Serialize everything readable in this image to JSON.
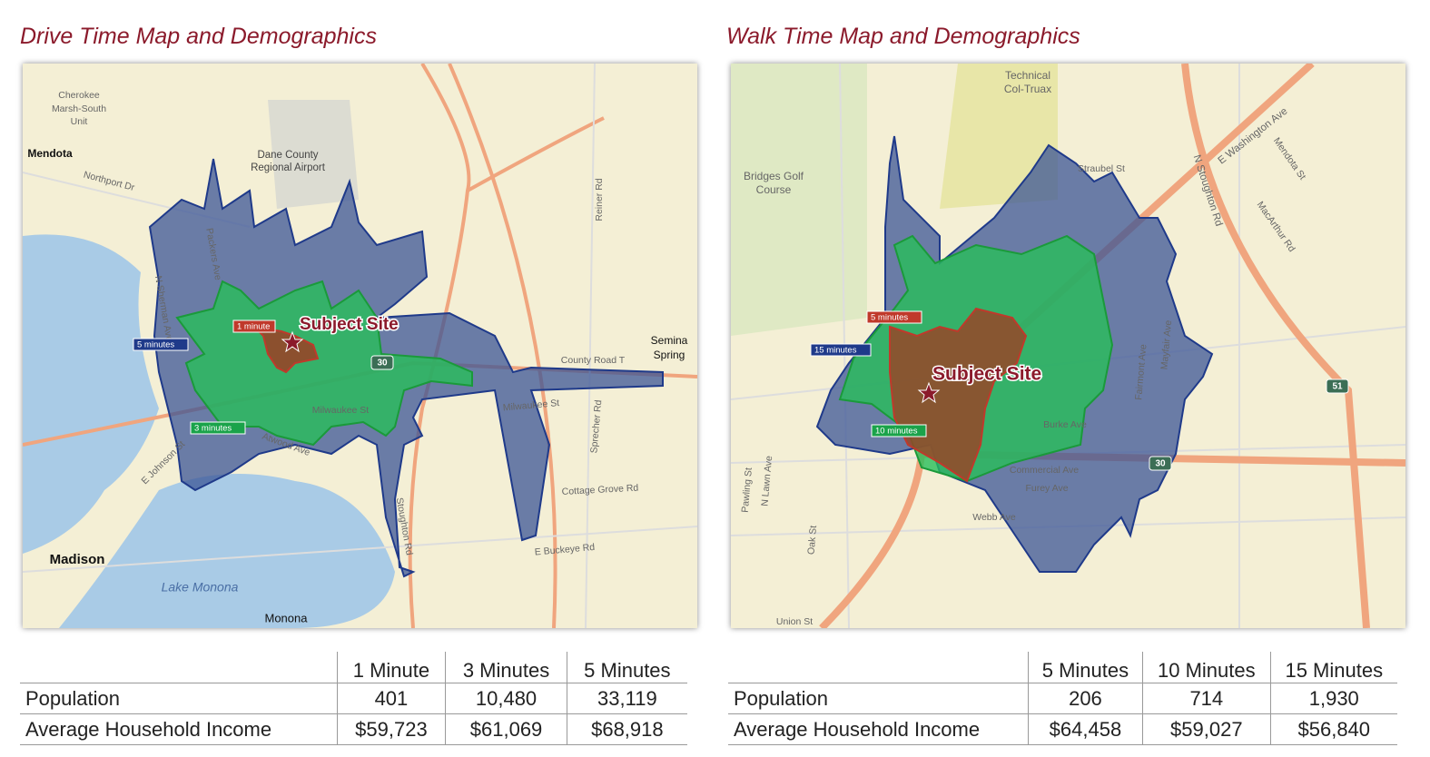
{
  "drive": {
    "title": "Drive Time Map and Demographics",
    "map": {
      "labels": [
        "Cherokee",
        "Marsh-South",
        "Unit",
        "Mendota",
        "Northport Dr",
        "Dane County",
        "Regional Airport",
        "N Sherman Ave",
        "Packers Ave",
        "Reiner Rd",
        "Semina",
        "Spring",
        "County Road T",
        "Milwaukee St",
        "Milwaukee St",
        "Sprecher Rd",
        "Cottage Grove Rd",
        "E Buckeye Rd",
        "Stoughton Rd",
        "E Johnson St",
        "Atwood Ave",
        "Madison",
        "Lake Monona",
        "Monona",
        "30"
      ],
      "time_labels": [
        "1 minute",
        "3 minutes",
        "5 minutes"
      ],
      "site": "Subject Site"
    },
    "table": {
      "columns": [
        "1 Minute",
        "3 Minutes",
        "5 Minutes"
      ],
      "rows": [
        {
          "label": "Population",
          "values": [
            "401",
            "10,480",
            "33,119"
          ]
        },
        {
          "label": "Average Household Income",
          "values": [
            "$59,723",
            "$61,069",
            "$68,918"
          ]
        }
      ]
    }
  },
  "walk": {
    "title": "Walk Time Map and Demographics",
    "map": {
      "labels": [
        "Technical",
        "Col-Truax",
        "Bridges Golf",
        "Course",
        "Straubel St",
        "E Washington Ave",
        "N Stoughton Rd",
        "Mendota St",
        "MacArthur Rd",
        "Fairmont Ave",
        "Mayfair Ave",
        "Burke Ave",
        "Commercial Ave",
        "Furey Ave",
        "Webb Ave",
        "Pawling St",
        "N Lawn Ave",
        "Oak St",
        "Union St",
        "51",
        "30"
      ],
      "time_labels": [
        "5 minutes",
        "10 minutes",
        "15 minutes"
      ],
      "site": "Subject Site"
    },
    "table": {
      "columns": [
        "5 Minutes",
        "10 Minutes",
        "15 Minutes"
      ],
      "rows": [
        {
          "label": "Population",
          "values": [
            "206",
            "714",
            "1,930"
          ]
        },
        {
          "label": "Average Household Income",
          "values": [
            "$64,458",
            "$59,027",
            "$56,840"
          ]
        }
      ]
    }
  }
}
